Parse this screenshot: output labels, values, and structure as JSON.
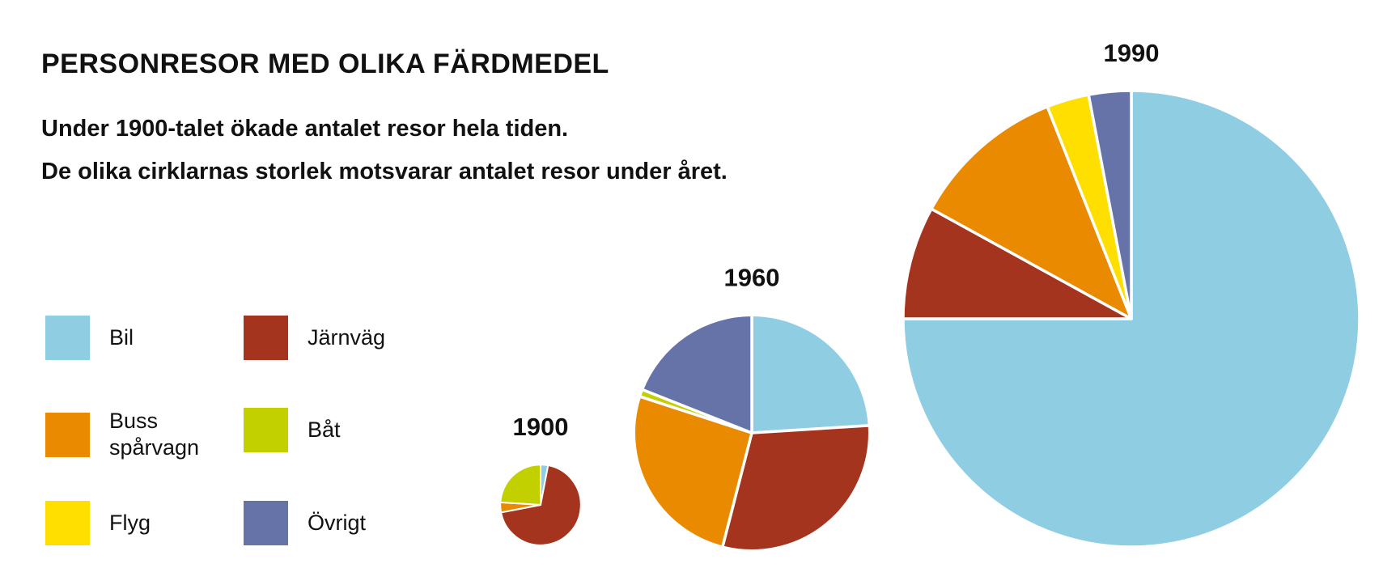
{
  "title": "PERSONRESOR MED OLIKA FÄRDMEDEL",
  "subtitle_lines": [
    "Under 1900-talet ökade antalet resor hela tiden.",
    "De olika cirklarnas storlek motsvarar antalet resor under året."
  ],
  "legend": [
    {
      "key": "bil",
      "label": "Bil",
      "color": "#8fcde3"
    },
    {
      "key": "jarnvag",
      "label": "Järnväg",
      "color": "#a5341e"
    },
    {
      "key": "buss",
      "label": "Buss spårvagn",
      "color": "#e98a00"
    },
    {
      "key": "bat",
      "label": "Båt",
      "color": "#c2d000"
    },
    {
      "key": "flyg",
      "label": "Flyg",
      "color": "#ffdf00"
    },
    {
      "key": "ovrigt",
      "label": "Övrigt",
      "color": "#6673a9"
    }
  ],
  "chart_data": [
    {
      "type": "pie",
      "title": "1900",
      "relative_size": 0.0312,
      "slices": [
        {
          "category": "Bil",
          "value": 3
        },
        {
          "category": "Järnväg",
          "value": 69
        },
        {
          "category": "Buss spårvagn",
          "value": 4
        },
        {
          "category": "Båt",
          "value": 24
        },
        {
          "category": "Flyg",
          "value": 0
        },
        {
          "category": "Övrigt",
          "value": 0
        }
      ]
    },
    {
      "type": "pie",
      "title": "1960",
      "relative_size": 0.267,
      "slices": [
        {
          "category": "Bil",
          "value": 24
        },
        {
          "category": "Järnväg",
          "value": 30
        },
        {
          "category": "Buss spårvagn",
          "value": 26
        },
        {
          "category": "Båt",
          "value": 1
        },
        {
          "category": "Flyg",
          "value": 0
        },
        {
          "category": "Övrigt",
          "value": 19
        }
      ]
    },
    {
      "type": "pie",
      "title": "1990",
      "relative_size": 1.0,
      "slices": [
        {
          "category": "Bil",
          "value": 75
        },
        {
          "category": "Järnväg",
          "value": 8
        },
        {
          "category": "Buss spårvagn",
          "value": 11
        },
        {
          "category": "Båt",
          "value": 0
        },
        {
          "category": "Flyg",
          "value": 3
        },
        {
          "category": "Övrigt",
          "value": 3
        }
      ]
    }
  ]
}
